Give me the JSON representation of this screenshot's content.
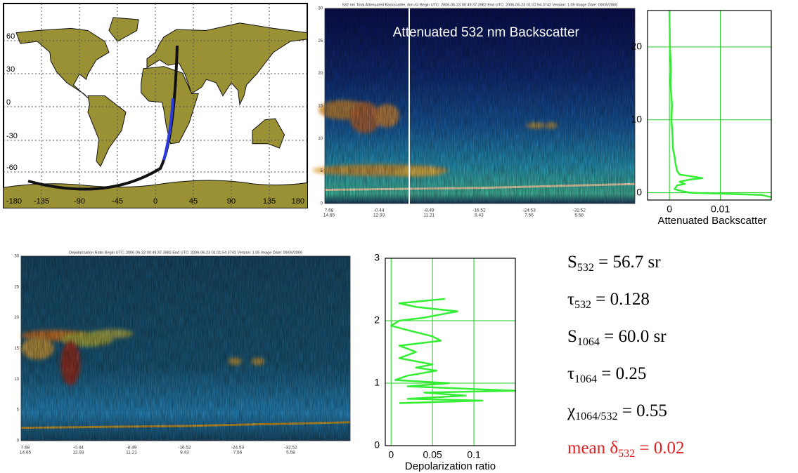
{
  "map": {
    "lat_labels": [
      "60",
      "30",
      "0",
      "-30",
      "-60"
    ],
    "lon_labels": [
      "-180",
      "-135",
      "-90",
      "-45",
      "0",
      "45",
      "90",
      "135",
      "180"
    ]
  },
  "curtains": [
    {
      "header": "532 nm Total Attenuated Backscatter, /km /sr   Begin UTC: 2006-06-23 00:49:37.3982   End UTC: 2006-06-23 01:01:54.3742   Version: 1.05   Image Date: 09/06/2006",
      "overlay": "Attenuated 532 nm Backscatter",
      "altitude_labels": [
        "30",
        "25",
        "20",
        "15",
        "10",
        "5",
        "0"
      ],
      "x_labels": [
        [
          "7.68",
          "14.65"
        ],
        [
          "-0.44",
          "12.93"
        ],
        [
          "-8.49",
          "11.21"
        ],
        [
          "-16.52",
          "9.43"
        ],
        [
          "-24.53",
          "7.56"
        ],
        [
          "-32.52",
          "5.58"
        ]
      ]
    },
    {
      "header": "Depolarization Ratio   Begin UTC: 2006-06-23 00:49:37.3982   End UTC: 2006-06-23 01:01:54.3742   Version: 1.05   Image Date: 09/06/2006",
      "altitude_labels": [
        "30",
        "25",
        "20",
        "15",
        "10",
        "5",
        "0"
      ],
      "x_labels": [
        [
          "7.68",
          "14.65"
        ],
        [
          "-0.44",
          "12.93"
        ],
        [
          "-8.49",
          "11.21"
        ],
        [
          "-16.52",
          "9.43"
        ],
        [
          "-24.53",
          "7.56"
        ],
        [
          "-32.52",
          "5.58"
        ]
      ]
    }
  ],
  "chart_data": [
    {
      "type": "line",
      "xlabel": "Attenuated Backscatter",
      "xlim": [
        -0.0043,
        0.02
      ],
      "ylim": [
        -1,
        25
      ],
      "xticks": [
        0,
        0.01
      ],
      "yticks": [
        0,
        10,
        20
      ],
      "grid": true,
      "series": [
        {
          "color": "#33ee33",
          "x": [
            0,
            0.0001,
            0.0003,
            0.0002,
            0.0005,
            0.0004,
            0.0006,
            0.0007,
            0.001,
            0.0012,
            0.0015,
            0.002,
            0.0065,
            0.004,
            0.002,
            0.003,
            0.0015,
            0.001,
            0.002,
            0.004,
            0.018,
            0.02
          ],
          "values": [
            25,
            20,
            17,
            15,
            12,
            10,
            8,
            6,
            5,
            4,
            3,
            2.5,
            2,
            1.8,
            1.5,
            1.2,
            1,
            0.5,
            0.3,
            0,
            -0.3,
            -0.6
          ]
        }
      ]
    },
    {
      "type": "line",
      "xlabel": "Depolarization ratio",
      "xlim": [
        -0.007,
        0.15
      ],
      "ylim": [
        0,
        3
      ],
      "xticks": [
        0,
        0.05,
        0.1
      ],
      "yticks": [
        0,
        1,
        2,
        3
      ],
      "grid": true,
      "series": [
        {
          "color": "#33ee33",
          "x": [
            0.065,
            0.01,
            0.03,
            0.08,
            0.04,
            0.01,
            0,
            0.02,
            0.05,
            0.06,
            0.01,
            0.03,
            0.01,
            0.05,
            0.03,
            0.055,
            0.02,
            0.005,
            0.07,
            0.02,
            0.11,
            0.15,
            0.04,
            0.09,
            0.02,
            0.11,
            0.01
          ],
          "values": [
            2.35,
            2.28,
            2.22,
            2.15,
            2.05,
            2,
            1.92,
            1.85,
            1.75,
            1.68,
            1.6,
            1.5,
            1.4,
            1.3,
            1.25,
            1.2,
            1.12,
            1.05,
            1,
            0.95,
            0.9,
            0.88,
            0.85,
            0.8,
            0.75,
            0.72,
            0.68
          ]
        }
      ]
    }
  ],
  "parameters": [
    {
      "symbol": "S",
      "sub": "532",
      "post": " = 56.7 sr"
    },
    {
      "symbol": "τ",
      "sub": "532",
      "post": " = 0.128"
    },
    {
      "symbol": "S",
      "sub": "1064",
      "post": " = 60.0 sr"
    },
    {
      "symbol": "τ",
      "sub": "1064",
      "post": " = 0.25"
    },
    {
      "symbol": "χ",
      "sub": "1064/532",
      "post": " = 0.55"
    },
    {
      "symbol": "mean δ",
      "sub": "532",
      "post": " = 0.02",
      "color": "#e02020"
    }
  ]
}
